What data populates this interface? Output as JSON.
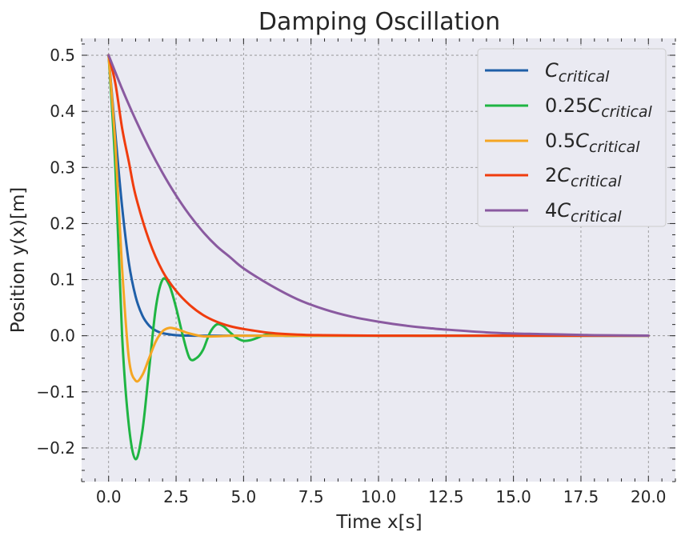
{
  "chart_data": {
    "type": "line",
    "title": "Damping Oscillation",
    "xlabel": "Time x[s]",
    "ylabel": "Position y(x)[m]",
    "xlim": [
      -1,
      21
    ],
    "ylim": [
      -0.26,
      0.53
    ],
    "x_ticks": [
      0.0,
      2.5,
      5.0,
      7.5,
      10.0,
      12.5,
      15.0,
      17.5,
      20.0
    ],
    "x_tick_labels": [
      "0.0",
      "2.5",
      "5.0",
      "7.5",
      "10.0",
      "12.5",
      "15.0",
      "17.5",
      "20.0"
    ],
    "y_ticks": [
      -0.2,
      -0.1,
      0.0,
      0.1,
      0.2,
      0.3,
      0.4,
      0.5
    ],
    "y_tick_labels": [
      "−0.2",
      "−0.1",
      "0.0",
      "0.1",
      "0.2",
      "0.3",
      "0.4",
      "0.5"
    ],
    "grid": true,
    "legend_position": "top-right",
    "series": [
      {
        "name": "C_critical",
        "legend_prefix": "",
        "color": "#1f5fa8",
        "x": [
          0,
          0.25,
          0.5,
          0.75,
          1.0,
          1.25,
          1.5,
          1.75,
          2.0,
          2.5,
          3.0,
          3.5,
          4.0,
          5.0,
          6.0,
          8.0,
          10.0,
          12.5,
          15.0,
          17.5,
          20.0
        ],
        "y": [
          0.5,
          0.36,
          0.23,
          0.13,
          0.07,
          0.036,
          0.018,
          0.009,
          0.0045,
          0.001,
          0.0002,
          0,
          0,
          0,
          0,
          0,
          0,
          0,
          0,
          0,
          0
        ]
      },
      {
        "name": "0.25C_critical",
        "legend_prefix": "0.25",
        "color": "#1fb543",
        "x": [
          0,
          0.25,
          0.5,
          0.75,
          1.0,
          1.25,
          1.5,
          1.75,
          2.0,
          2.25,
          2.5,
          2.75,
          3.0,
          3.25,
          3.5,
          3.75,
          4.0,
          4.25,
          4.5,
          4.75,
          5.0,
          5.25,
          5.5,
          5.75,
          6.0,
          6.25,
          6.5,
          7.0,
          7.5,
          8.0,
          10.0,
          12.5,
          15.0,
          17.5,
          20.0
        ],
        "y": [
          0.5,
          0.3,
          0.0,
          -0.16,
          -0.22,
          -0.17,
          -0.06,
          0.05,
          0.1,
          0.09,
          0.05,
          0.0,
          -0.04,
          -0.04,
          -0.025,
          0.005,
          0.02,
          0.017,
          0.006,
          -0.004,
          -0.009,
          -0.008,
          -0.004,
          0.001,
          0.003,
          0.002,
          0.0,
          0.0,
          0.0,
          0.0,
          0,
          0,
          0,
          0,
          0
        ]
      },
      {
        "name": "0.5C_critical",
        "legend_prefix": "0.5",
        "color": "#f5a623",
        "x": [
          0,
          0.25,
          0.5,
          0.75,
          1.0,
          1.25,
          1.5,
          1.75,
          2.0,
          2.25,
          2.5,
          2.75,
          3.0,
          3.5,
          4.0,
          4.5,
          5.0,
          5.5,
          6.0,
          7.0,
          8.0,
          10.0,
          12.5,
          15.0,
          17.5,
          20.0
        ],
        "y": [
          0.5,
          0.34,
          0.12,
          -0.04,
          -0.08,
          -0.07,
          -0.04,
          -0.01,
          0.008,
          0.014,
          0.012,
          0.008,
          0.004,
          -0.001,
          -0.001,
          0,
          0,
          0,
          0,
          0,
          0,
          0,
          0,
          0,
          0,
          0
        ]
      },
      {
        "name": "2C_critical",
        "legend_prefix": "2",
        "color": "#f03c0e",
        "x": [
          0,
          0.25,
          0.5,
          0.75,
          1.0,
          1.5,
          2.0,
          2.5,
          3.0,
          3.5,
          4.0,
          4.5,
          5.0,
          6.0,
          7.0,
          8.0,
          10.0,
          12.5,
          15.0,
          17.5,
          20.0
        ],
        "y": [
          0.5,
          0.45,
          0.37,
          0.31,
          0.25,
          0.17,
          0.115,
          0.08,
          0.055,
          0.037,
          0.025,
          0.017,
          0.012,
          0.005,
          0.002,
          0.001,
          0,
          0,
          0,
          0,
          0
        ]
      },
      {
        "name": "4C_critical",
        "legend_prefix": "4",
        "color": "#8a5aa0",
        "x": [
          0,
          0.5,
          1.0,
          1.5,
          2.0,
          2.5,
          3.0,
          3.5,
          4.0,
          4.5,
          5.0,
          6.0,
          7.0,
          8.0,
          9.0,
          10.0,
          11.0,
          12.0,
          12.5,
          14.0,
          15.0,
          16.0,
          17.5,
          18.0,
          20.0
        ],
        "y": [
          0.5,
          0.44,
          0.385,
          0.335,
          0.29,
          0.25,
          0.215,
          0.185,
          0.16,
          0.14,
          0.12,
          0.09,
          0.065,
          0.047,
          0.034,
          0.025,
          0.018,
          0.013,
          0.011,
          0.006,
          0.004,
          0.003,
          0.0015,
          0.001,
          0.0003
        ]
      }
    ]
  }
}
